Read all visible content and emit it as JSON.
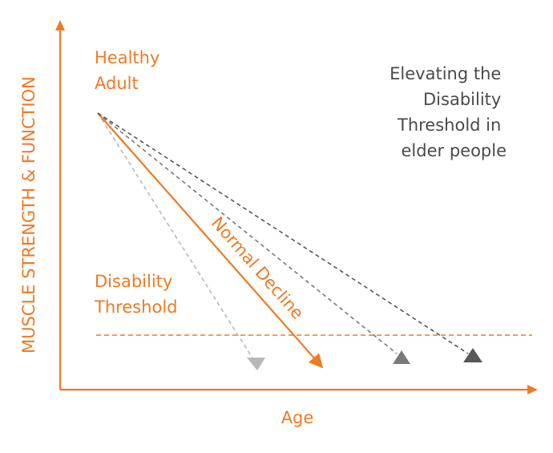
{
  "diagram": {
    "y_axis_label": "MUSCLE STRENGTH & FUNCTION",
    "x_axis_label": "Age",
    "start_label": [
      "Healthy",
      "Adult"
    ],
    "threshold_label": [
      "Disability",
      "Threshold"
    ],
    "note_label": [
      "Elevating the",
      "Disability",
      "Threshold in",
      "elder people"
    ],
    "main_line_label": "Normal Decline"
  },
  "colors": {
    "accent": "#ee7a23",
    "note_text": "#4a4a4a",
    "light_grey": "#b8b8b8",
    "mid_grey": "#7a7a7a",
    "dark_grey": "#585858"
  }
}
